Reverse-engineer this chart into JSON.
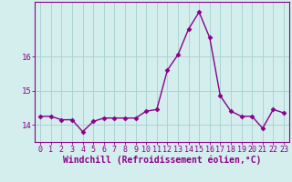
{
  "x": [
    0,
    1,
    2,
    3,
    4,
    5,
    6,
    7,
    8,
    9,
    10,
    11,
    12,
    13,
    14,
    15,
    16,
    17,
    18,
    19,
    20,
    21,
    22,
    23
  ],
  "y": [
    14.25,
    14.25,
    14.15,
    14.15,
    13.8,
    14.1,
    14.2,
    14.2,
    14.2,
    14.2,
    14.4,
    14.45,
    15.6,
    16.05,
    16.8,
    17.3,
    16.55,
    14.85,
    14.4,
    14.25,
    14.25,
    13.9,
    14.45,
    14.35
  ],
  "line_color": "#8b008b",
  "marker": "D",
  "marker_size": 2.5,
  "xlabel": "Windchill (Refroidissement éolien,°C)",
  "xlabel_fontsize": 7,
  "xtick_labels": [
    "0",
    "1",
    "2",
    "3",
    "4",
    "5",
    "6",
    "7",
    "8",
    "9",
    "10",
    "11",
    "12",
    "13",
    "14",
    "15",
    "16",
    "17",
    "18",
    "19",
    "20",
    "21",
    "22",
    "23"
  ],
  "ylim": [
    13.5,
    17.6
  ],
  "yticks": [
    14,
    15,
    16
  ],
  "grid_color": "#aad4d4",
  "bg_color": "#d4eeed",
  "tick_fontsize": 6,
  "linewidth": 1.0
}
